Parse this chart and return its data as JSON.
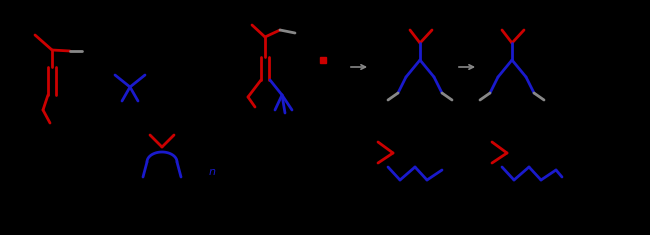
{
  "bg": "#000000",
  "red": "#cc0000",
  "blue": "#1a1acc",
  "gray": "#888888",
  "lw": 2.0,
  "fig_w": 6.5,
  "fig_h": 2.35,
  "dpi": 100
}
